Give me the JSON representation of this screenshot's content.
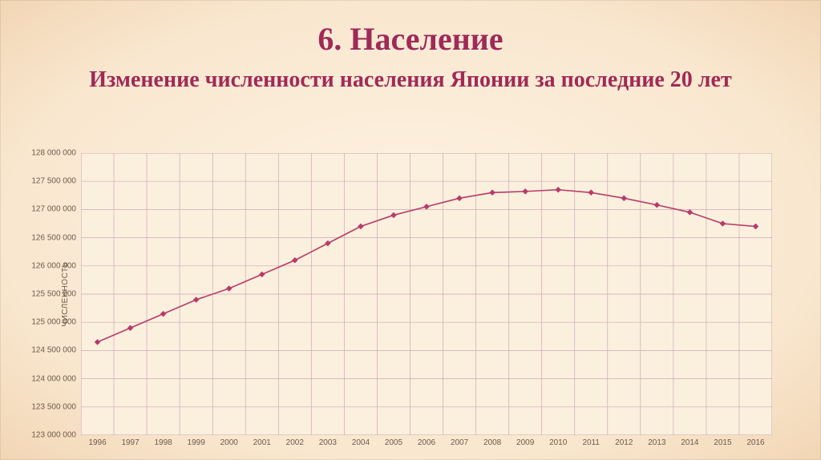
{
  "title": "6. Население",
  "subtitle": "Изменение численности населения Японии за последние 20 лет",
  "title_color": "#a02a56",
  "subtitle_color": "#a02a56",
  "title_fontsize": 40,
  "subtitle_fontsize": 28,
  "chart": {
    "type": "line",
    "ylabel": "ЧИСЛЕННОСТЬ",
    "ylabel_fontsize": 10,
    "tick_fontsize": 10,
    "tick_color": "#6b5a4a",
    "background": "#fbf0dd",
    "grid_color": "#cfa7b8",
    "border_color": "#b9a186",
    "line_color": "#b83a6a",
    "marker_color": "#b83a6a",
    "marker_fill": "#b83a6a",
    "line_width": 1.6,
    "marker_size": 3.2,
    "ylim": [
      123000000,
      128000000
    ],
    "ytick_step": 500000,
    "yticks": [
      "123 000 000",
      "123 500 000",
      "124 000 000",
      "124 500 000",
      "125 000 000",
      "125 500 000",
      "126 000 000",
      "126 500 000",
      "127 000 000",
      "127 500 000",
      "128 000 000"
    ],
    "xticks": [
      "1996",
      "1997",
      "1998",
      "1999",
      "2000",
      "2001",
      "2002",
      "2003",
      "2004",
      "2005",
      "2006",
      "2007",
      "2008",
      "2009",
      "2010",
      "2011",
      "2012",
      "2013",
      "2014",
      "2015",
      "2016"
    ],
    "x_values": [
      1996,
      1997,
      1998,
      1999,
      2000,
      2001,
      2002,
      2003,
      2004,
      2005,
      2006,
      2007,
      2008,
      2009,
      2010,
      2011,
      2012,
      2013,
      2014,
      2015,
      2016
    ],
    "y_values": [
      124650000,
      124900000,
      125150000,
      125400000,
      125600000,
      125850000,
      126100000,
      126400000,
      126700000,
      126900000,
      127050000,
      127200000,
      127300000,
      127320000,
      127350000,
      127300000,
      127200000,
      127080000,
      126950000,
      126750000,
      126700000
    ]
  }
}
